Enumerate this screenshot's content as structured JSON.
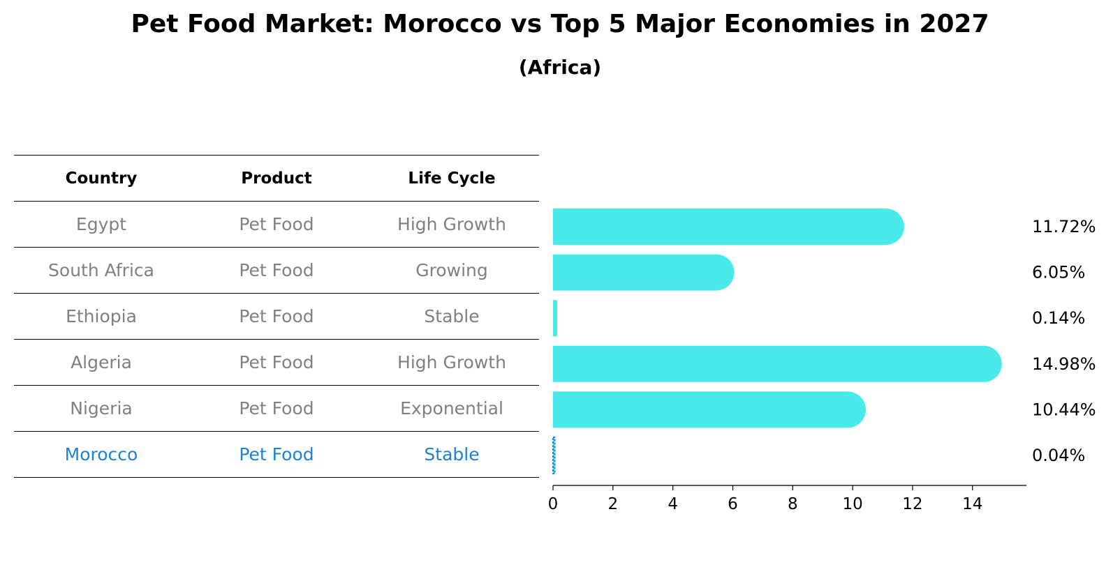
{
  "chart_data": {
    "type": "bar",
    "orientation": "horizontal",
    "title": "Pet Food Market: Morocco vs Top 5 Major Economies in 2027",
    "subtitle": "(Africa)",
    "table": {
      "headers": [
        "Country",
        "Product",
        "Life Cycle"
      ],
      "rows": [
        [
          "Egypt",
          "Pet Food",
          "High Growth"
        ],
        [
          "South Africa",
          "Pet Food",
          "Growing"
        ],
        [
          "Ethiopia",
          "Pet Food",
          "Stable"
        ],
        [
          "Algeria",
          "Pet Food",
          "High Growth"
        ],
        [
          "Nigeria",
          "Pet Food",
          "Exponential"
        ],
        [
          "Morocco",
          "Pet Food",
          "Stable"
        ]
      ],
      "highlight_row": "Morocco"
    },
    "categories": [
      "Egypt",
      "South Africa",
      "Ethiopia",
      "Algeria",
      "Nigeria",
      "Morocco"
    ],
    "values": [
      11.72,
      6.05,
      0.14,
      14.98,
      10.44,
      0.04
    ],
    "value_labels": [
      "11.72%",
      "6.05%",
      "0.14%",
      "14.98%",
      "10.44%",
      "0.04%"
    ],
    "xlim": [
      0,
      15.8
    ],
    "xticks": [
      0,
      2,
      4,
      6,
      8,
      10,
      12,
      14
    ],
    "xlabel": "",
    "ylabel": "",
    "grid": false,
    "colors": {
      "bar": "#4aeaea",
      "highlight_bar": "#1a84d4",
      "highlight_text": "#1a84d4",
      "muted_text": "#808080"
    }
  }
}
